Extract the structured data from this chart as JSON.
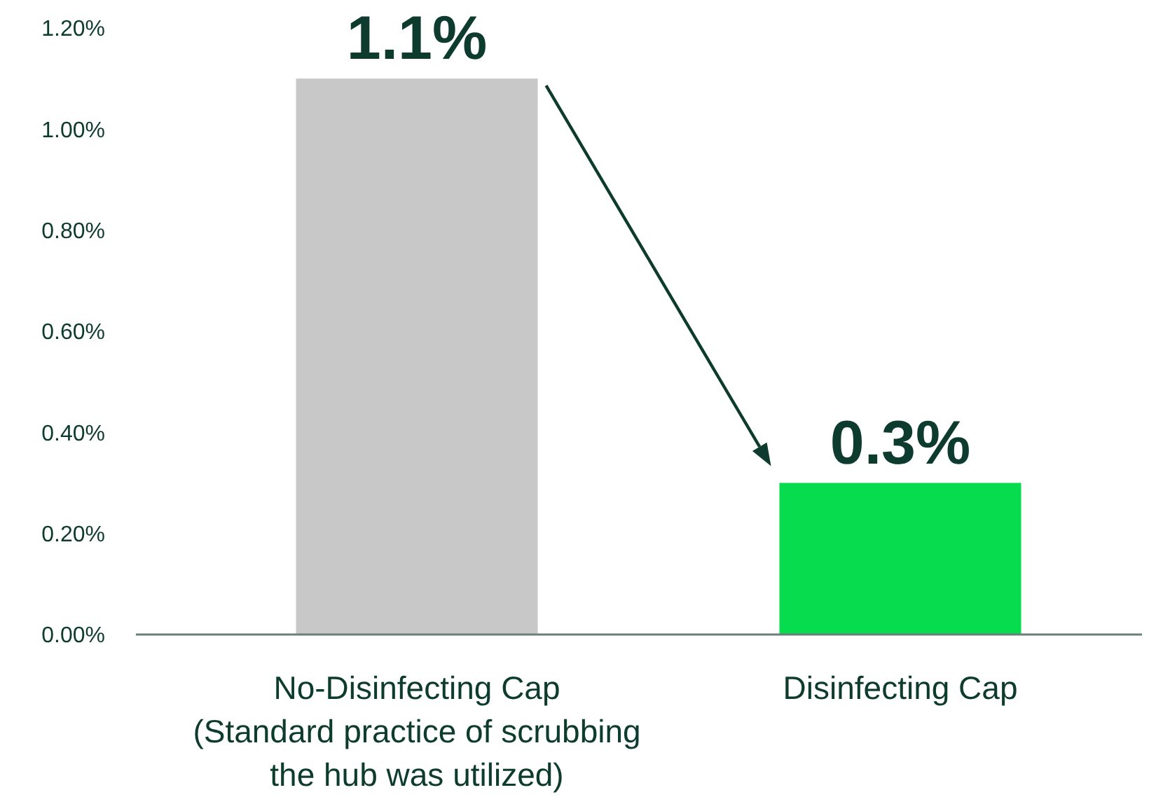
{
  "chart_data": {
    "type": "bar",
    "categories": [
      "No-Disinfecting Cap\n(Standard practice of scrubbing\nthe hub was utilized)",
      "Disinfecting Cap"
    ],
    "values": [
      1.1,
      0.3
    ],
    "colors": [
      "#c8c8c8",
      "#06dc4e"
    ],
    "value_labels": [
      "1.1%",
      "0.3%"
    ],
    "ylim": [
      0,
      1.2
    ],
    "yticks": [
      {
        "value": 0,
        "label": "0.00%"
      },
      {
        "value": 0.2,
        "label": "0.20%"
      },
      {
        "value": 0.4,
        "label": "0.40%"
      },
      {
        "value": 0.6,
        "label": "0.60%"
      },
      {
        "value": 0.8,
        "label": "0.80%"
      },
      {
        "value": 1.0,
        "label": "1.00%"
      },
      {
        "value": 1.2,
        "label": "1.20%"
      }
    ],
    "grid": false
  }
}
